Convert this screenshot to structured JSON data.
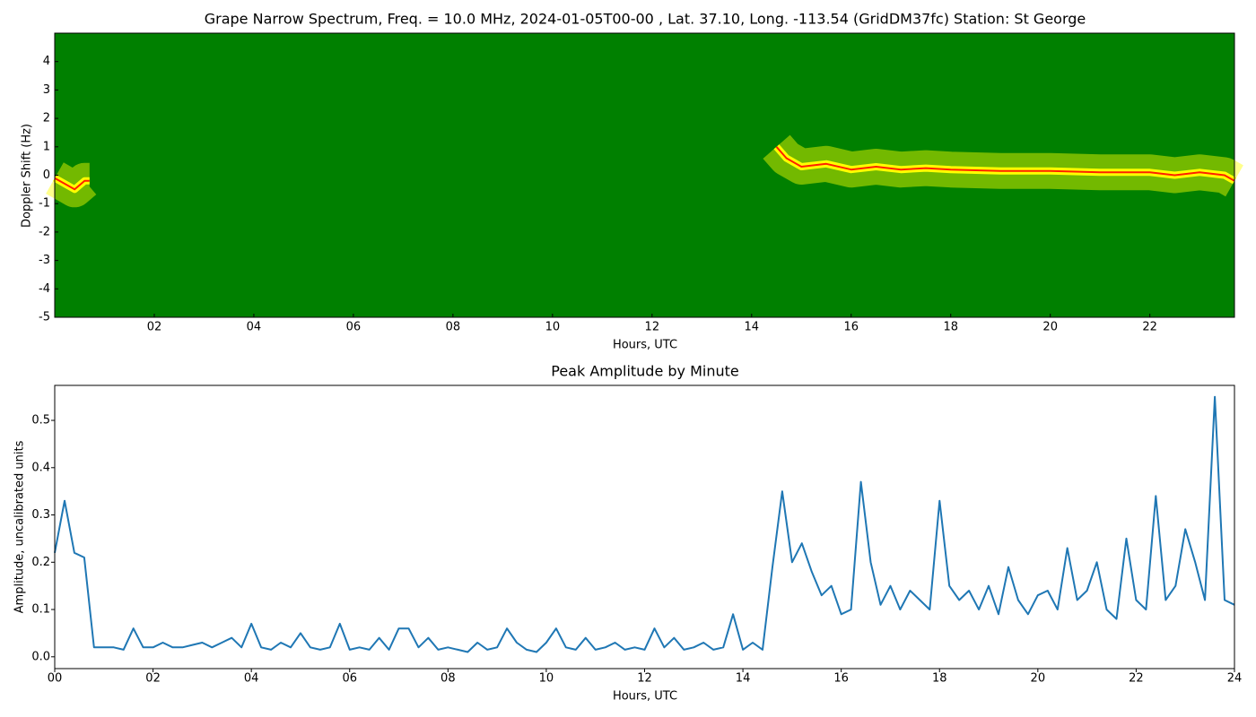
{
  "chart_data": [
    {
      "type": "spectrogram",
      "title": "Grape Narrow Spectrum, Freq. = 10.0 MHz, 2024-01-05T00-00 , Lat.  37.10, Long. -113.54 (GridDM37fc) Station: St George",
      "xlabel": "Hours, UTC",
      "ylabel": "Doppler Shift (Hz)",
      "xlim": [
        0,
        23.7
      ],
      "ylim": [
        -5,
        5
      ],
      "xticks": [
        {
          "value": 2,
          "label": "02"
        },
        {
          "value": 4,
          "label": "04"
        },
        {
          "value": 6,
          "label": "06"
        },
        {
          "value": 8,
          "label": "08"
        },
        10,
        12,
        14,
        16,
        18,
        20,
        22
      ],
      "yticks": [
        -5,
        -4,
        -3,
        -2,
        -1,
        0,
        1,
        2,
        3,
        4
      ],
      "background_color": "#008000",
      "color": "#ff2000",
      "glow_color": "#ffff00",
      "x": [
        0,
        0.2,
        0.4,
        0.6,
        0.7,
        1.0,
        14.5,
        14.7,
        15.0,
        15.5,
        16,
        16.5,
        17,
        17.5,
        18,
        19,
        20,
        21,
        22,
        22.5,
        23,
        23.5,
        23.7
      ],
      "values": [
        -0.1,
        -0.3,
        -0.5,
        -0.2,
        -0.2,
        null,
        1.0,
        0.6,
        0.3,
        0.4,
        0.2,
        0.3,
        0.2,
        0.25,
        0.2,
        0.15,
        0.15,
        0.1,
        0.1,
        0.0,
        0.1,
        0.0,
        -0.2
      ]
    },
    {
      "type": "line",
      "title": "Peak Amplitude by Minute",
      "xlabel": "Hours, UTC",
      "ylabel": "Amplitude, uncalibrated units",
      "xlim": [
        0,
        24
      ],
      "ylim": [
        -0.025,
        0.574
      ],
      "xticks": [
        {
          "value": 0,
          "label": "00"
        },
        {
          "value": 2,
          "label": "02"
        },
        {
          "value": 4,
          "label": "04"
        },
        {
          "value": 6,
          "label": "06"
        },
        {
          "value": 8,
          "label": "08"
        },
        10,
        12,
        14,
        16,
        18,
        20,
        22,
        24
      ],
      "yticks": [
        {
          "value": 0,
          "label": "0.0"
        },
        0.1,
        0.2,
        0.3,
        0.4,
        0.5
      ],
      "color": "#1f77b4",
      "x": [
        0,
        0.2,
        0.4,
        0.6,
        0.8,
        1.0,
        1.2,
        1.4,
        1.6,
        1.8,
        2.0,
        2.2,
        2.4,
        2.6,
        2.8,
        3.0,
        3.2,
        3.4,
        3.6,
        3.8,
        4.0,
        4.2,
        4.4,
        4.6,
        4.8,
        5.0,
        5.2,
        5.4,
        5.6,
        5.8,
        6.0,
        6.2,
        6.4,
        6.6,
        6.8,
        7.0,
        7.2,
        7.4,
        7.6,
        7.8,
        8.0,
        8.2,
        8.4,
        8.6,
        8.8,
        9.0,
        9.2,
        9.4,
        9.6,
        9.8,
        10.0,
        10.2,
        10.4,
        10.6,
        10.8,
        11.0,
        11.2,
        11.4,
        11.6,
        11.8,
        12.0,
        12.2,
        12.4,
        12.6,
        12.8,
        13.0,
        13.2,
        13.4,
        13.6,
        13.8,
        14.0,
        14.2,
        14.4,
        14.6,
        14.8,
        15.0,
        15.2,
        15.4,
        15.6,
        15.8,
        16.0,
        16.2,
        16.4,
        16.6,
        16.8,
        17.0,
        17.2,
        17.4,
        17.6,
        17.8,
        18.0,
        18.2,
        18.4,
        18.6,
        18.8,
        19.0,
        19.2,
        19.4,
        19.6,
        19.8,
        20.0,
        20.2,
        20.4,
        20.6,
        20.8,
        21.0,
        21.2,
        21.4,
        21.6,
        21.8,
        22.0,
        22.2,
        22.4,
        22.6,
        22.8,
        23.0,
        23.2,
        23.4,
        23.6,
        23.8,
        24.0
      ],
      "values": [
        0.22,
        0.33,
        0.22,
        0.21,
        0.02,
        0.02,
        0.02,
        0.015,
        0.06,
        0.02,
        0.02,
        0.03,
        0.02,
        0.02,
        0.025,
        0.03,
        0.02,
        0.03,
        0.04,
        0.02,
        0.07,
        0.02,
        0.015,
        0.03,
        0.02,
        0.05,
        0.02,
        0.015,
        0.02,
        0.07,
        0.015,
        0.02,
        0.015,
        0.04,
        0.015,
        0.06,
        0.06,
        0.02,
        0.04,
        0.015,
        0.02,
        0.015,
        0.01,
        0.03,
        0.015,
        0.02,
        0.06,
        0.03,
        0.015,
        0.01,
        0.03,
        0.06,
        0.02,
        0.015,
        0.04,
        0.015,
        0.02,
        0.03,
        0.015,
        0.02,
        0.015,
        0.06,
        0.02,
        0.04,
        0.015,
        0.02,
        0.03,
        0.015,
        0.02,
        0.09,
        0.015,
        0.03,
        0.015,
        0.19,
        0.35,
        0.2,
        0.24,
        0.18,
        0.13,
        0.15,
        0.09,
        0.1,
        0.37,
        0.2,
        0.11,
        0.15,
        0.1,
        0.14,
        0.12,
        0.1,
        0.33,
        0.15,
        0.12,
        0.14,
        0.1,
        0.15,
        0.09,
        0.19,
        0.12,
        0.09,
        0.13,
        0.14,
        0.1,
        0.23,
        0.12,
        0.14,
        0.2,
        0.1,
        0.08,
        0.25,
        0.12,
        0.1,
        0.34,
        0.12,
        0.15,
        0.27,
        0.2,
        0.12,
        0.55,
        0.12,
        0.11
      ]
    }
  ]
}
